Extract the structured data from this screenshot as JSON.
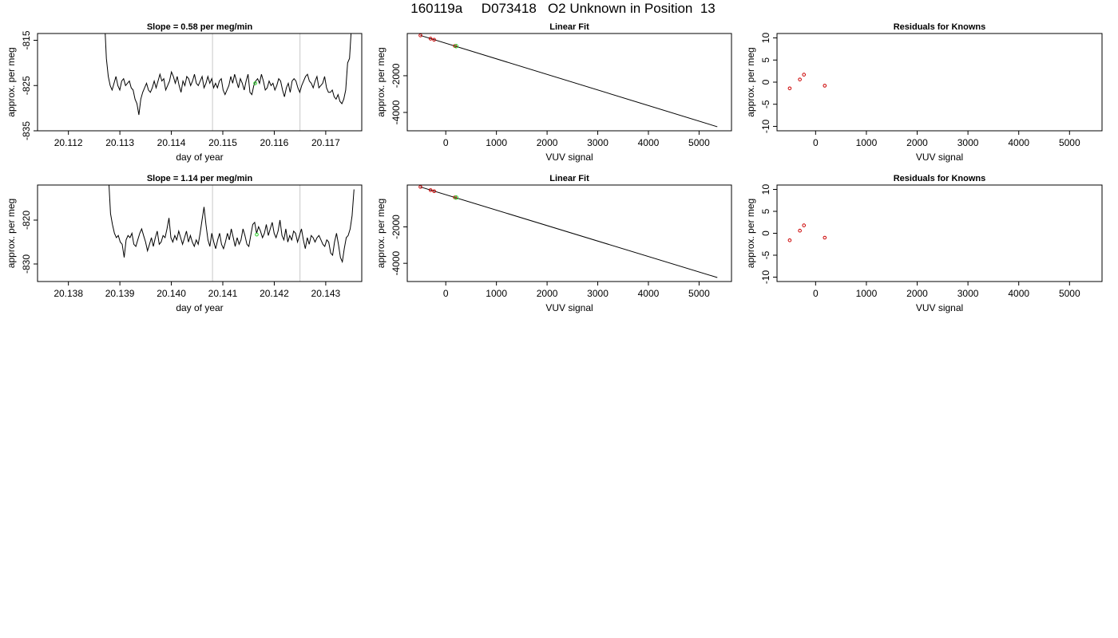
{
  "header": {
    "title": "160119a     D073418   O2 Unknown in Position  13"
  },
  "chart_data": [
    {
      "type": "line",
      "panel": "timeseries-1",
      "title": "Slope =  0.58  per meg/min",
      "xlabel": "day of year",
      "ylabel": "approx. per meg",
      "xlim": [
        20.1114,
        20.1177
      ],
      "ylim": [
        -835,
        -813.5
      ],
      "xticks": [
        "20.112",
        "20.113",
        "20.114",
        "20.115",
        "20.116",
        "20.117"
      ],
      "xtick_values": [
        20.112,
        20.113,
        20.114,
        20.115,
        20.116,
        20.117
      ],
      "yticks": [
        "-835",
        "-825",
        "-815"
      ],
      "ytick_values": [
        -835,
        -825,
        -815
      ],
      "vlines": [
        20.1148,
        20.1165
      ],
      "marker": {
        "x": 20.11563,
        "y": -824.5,
        "color": "#22cc22"
      },
      "x_start": 20.1127,
      "x_end": 20.1175,
      "y": [
        -810,
        -819,
        -823,
        -825,
        -826,
        -824.5,
        -823,
        -825,
        -826,
        -824,
        -823.5,
        -825,
        -824.5,
        -824,
        -825.5,
        -826,
        -828,
        -829,
        -831.5,
        -828,
        -826.5,
        -825.5,
        -824.5,
        -826,
        -826.5,
        -825.5,
        -824,
        -825.5,
        -824,
        -822.5,
        -824,
        -823.5,
        -826,
        -825,
        -824,
        -822,
        -823,
        -824.5,
        -823,
        -825,
        -826.5,
        -824,
        -825,
        -823,
        -823.5,
        -825,
        -824,
        -822.5,
        -824.5,
        -825,
        -824,
        -823,
        -825.5,
        -824.5,
        -823,
        -824.5,
        -823.5,
        -825.5,
        -824.5,
        -825.5,
        -824,
        -823.5,
        -826,
        -827,
        -826,
        -825,
        -823,
        -824.5,
        -822.5,
        -824,
        -825.5,
        -823.5,
        -824.5,
        -826,
        -824,
        -822.5,
        -826.5,
        -827,
        -825,
        -824,
        -823.5,
        -824.5,
        -822.5,
        -824,
        -826,
        -825.5,
        -824,
        -825,
        -824.5,
        -826,
        -825,
        -823.5,
        -824,
        -826,
        -827.5,
        -825.5,
        -824.5,
        -826.5,
        -824,
        -823.5,
        -824,
        -825.5,
        -826.5,
        -825,
        -824,
        -823,
        -822.5,
        -824,
        -824.5,
        -825.5,
        -824,
        -823,
        -825.5,
        -825,
        -824.5,
        -823,
        -825.5,
        -826.5,
        -826.5,
        -826,
        -827.5,
        -828,
        -827,
        -828.5,
        -829,
        -828,
        -826,
        -820,
        -819,
        -812
      ]
    },
    {
      "type": "scatter",
      "panel": "linear-fit-1",
      "title": "Linear Fit",
      "xlabel": "VUV signal",
      "ylabel": "approx. per meg",
      "xlim": [
        -760,
        5640
      ],
      "ylim": [
        -5000,
        300
      ],
      "xticks": [
        "0",
        "1000",
        "2000",
        "3000",
        "4000",
        "5000"
      ],
      "xtick_values": [
        0,
        1000,
        2000,
        3000,
        4000,
        5000
      ],
      "yticks": [
        "-4000",
        "-2000"
      ],
      "ytick_values": [
        -4000,
        -2000
      ],
      "fit_line": {
        "x": [
          -500,
          5360
        ],
        "y": [
          194,
          -4780
        ]
      },
      "knowns": {
        "x": [
          -500,
          -300,
          -230,
          180
        ],
        "y": [
          196,
          20,
          -40,
          -380
        ],
        "color": "#cc0000"
      },
      "unknown": {
        "x": [
          205
        ],
        "y": [
          -388
        ],
        "color": "#22cc22"
      }
    },
    {
      "type": "scatter",
      "panel": "residuals-1",
      "title": "Residuals for Knowns",
      "xlabel": "VUV signal",
      "ylabel": "approx. per meg",
      "xlim": [
        -760,
        5640
      ],
      "ylim": [
        -11,
        11
      ],
      "xticks": [
        "0",
        "1000",
        "2000",
        "3000",
        "4000",
        "5000"
      ],
      "xtick_values": [
        0,
        1000,
        2000,
        3000,
        4000,
        5000
      ],
      "yticks": [
        "-10",
        "-5",
        "0",
        "5",
        "10"
      ],
      "ytick_values": [
        -10,
        -5,
        0,
        5,
        10
      ],
      "points": {
        "x": [
          -510,
          -310,
          -230,
          180
        ],
        "y": [
          -1.4,
          0.6,
          1.7,
          -0.8
        ],
        "color": "#cc0000"
      }
    },
    {
      "type": "line",
      "panel": "timeseries-2",
      "title": "Slope =  1.14  per meg/min",
      "xlabel": "day of year",
      "ylabel": "approx. per meg",
      "xlim": [
        20.1374,
        20.1437
      ],
      "ylim": [
        -834,
        -812
      ],
      "xticks": [
        "20.138",
        "20.139",
        "20.140",
        "20.141",
        "20.142",
        "20.143"
      ],
      "xtick_values": [
        20.138,
        20.139,
        20.14,
        20.141,
        20.142,
        20.143
      ],
      "yticks": [
        "-830",
        "-820"
      ],
      "ytick_values": [
        -830,
        -820
      ],
      "vlines": [
        20.1408,
        20.1425
      ],
      "marker": {
        "x": 20.14166,
        "y": -823.3,
        "color": "#22cc22"
      },
      "x_start": 20.13878,
      "x_end": 20.14355,
      "y": [
        -810,
        -818.5,
        -821,
        -823,
        -824,
        -823.5,
        -825,
        -825.5,
        -828.5,
        -824.5,
        -823.5,
        -824,
        -823,
        -825.5,
        -826,
        -824.5,
        -823,
        -822,
        -823.5,
        -825,
        -827,
        -825.5,
        -824,
        -826,
        -824,
        -822.5,
        -825.5,
        -825,
        -823.5,
        -824,
        -822,
        -819.5,
        -824,
        -825,
        -823.5,
        -824.5,
        -822.5,
        -824,
        -825.5,
        -824,
        -822.5,
        -825,
        -823.5,
        -825,
        -826,
        -824.5,
        -825.5,
        -823,
        -820,
        -817,
        -821,
        -824.5,
        -826,
        -823,
        -825,
        -826.5,
        -824.5,
        -823,
        -825.5,
        -826.5,
        -825,
        -823,
        -824.5,
        -822,
        -824,
        -826,
        -824,
        -825.5,
        -824.5,
        -822,
        -823.5,
        -825.5,
        -826,
        -823.5,
        -821,
        -820.5,
        -823,
        -821.5,
        -822.5,
        -824,
        -823,
        -821,
        -823.5,
        -822,
        -820.5,
        -823,
        -824,
        -822.5,
        -820,
        -823.5,
        -824.5,
        -822,
        -825,
        -823.5,
        -824.5,
        -822.5,
        -823,
        -825,
        -823.5,
        -822,
        -824.5,
        -826.5,
        -824,
        -825.5,
        -823.5,
        -824,
        -825,
        -824,
        -823.5,
        -824.5,
        -825.5,
        -826,
        -824.5,
        -825,
        -827.5,
        -828,
        -825,
        -823,
        -825.5,
        -828.5,
        -829.5,
        -826.5,
        -824,
        -823.5,
        -822,
        -819,
        -813
      ]
    },
    {
      "type": "scatter",
      "panel": "linear-fit-2",
      "title": "Linear Fit",
      "xlabel": "VUV signal",
      "ylabel": "approx. per meg",
      "xlim": [
        -760,
        5640
      ],
      "ylim": [
        -5000,
        300
      ],
      "xticks": [
        "0",
        "1000",
        "2000",
        "3000",
        "4000",
        "5000"
      ],
      "xtick_values": [
        0,
        1000,
        2000,
        3000,
        4000,
        5000
      ],
      "yticks": [
        "-4000",
        "-2000"
      ],
      "ytick_values": [
        -4000,
        -2000
      ],
      "fit_line": {
        "x": [
          -500,
          5360
        ],
        "y": [
          194,
          -4780
        ]
      },
      "knowns": {
        "x": [
          -500,
          -300,
          -230,
          180
        ],
        "y": [
          196,
          20,
          -40,
          -380
        ],
        "color": "#cc0000"
      },
      "unknown": {
        "x": [
          205
        ],
        "y": [
          -388
        ],
        "color": "#22cc22"
      }
    },
    {
      "type": "scatter",
      "panel": "residuals-2",
      "title": "Residuals for Knowns",
      "xlabel": "VUV signal",
      "ylabel": "approx. per meg",
      "xlim": [
        -760,
        5640
      ],
      "ylim": [
        -11,
        11
      ],
      "xticks": [
        "0",
        "1000",
        "2000",
        "3000",
        "4000",
        "5000"
      ],
      "xtick_values": [
        0,
        1000,
        2000,
        3000,
        4000,
        5000
      ],
      "yticks": [
        "-10",
        "-5",
        "0",
        "5",
        "10"
      ],
      "ytick_values": [
        -10,
        -5,
        0,
        5,
        10
      ],
      "points": {
        "x": [
          -510,
          -310,
          -230,
          180
        ],
        "y": [
          -1.6,
          0.6,
          1.8,
          -1.0
        ],
        "color": "#cc0000"
      }
    }
  ]
}
